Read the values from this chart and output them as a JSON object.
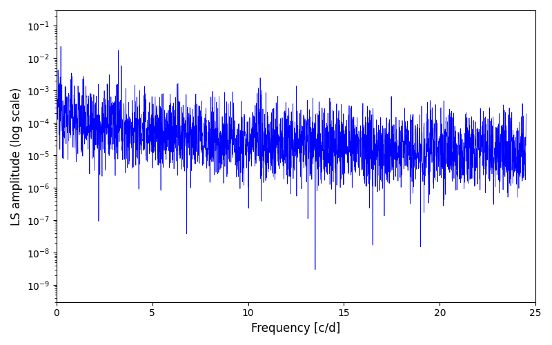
{
  "title": "",
  "xlabel": "Frequency [c/d]",
  "ylabel": "LS amplitude (log scale)",
  "line_color": "#0000ff",
  "line_width": 0.5,
  "xlim": [
    0,
    25
  ],
  "ylim": [
    3e-10,
    0.3
  ],
  "freq_min": 0.05,
  "freq_max": 24.5,
  "n_points": 3000,
  "seed": 12345,
  "background_color": "#ffffff",
  "figsize": [
    8.0,
    5.0
  ],
  "dpi": 100,
  "alpha_power": 2.0,
  "base_amplitude": 0.0003,
  "log_noise_std": 1.4,
  "deep_dip_freq": 13.5,
  "deep_dip_value": 3e-09
}
